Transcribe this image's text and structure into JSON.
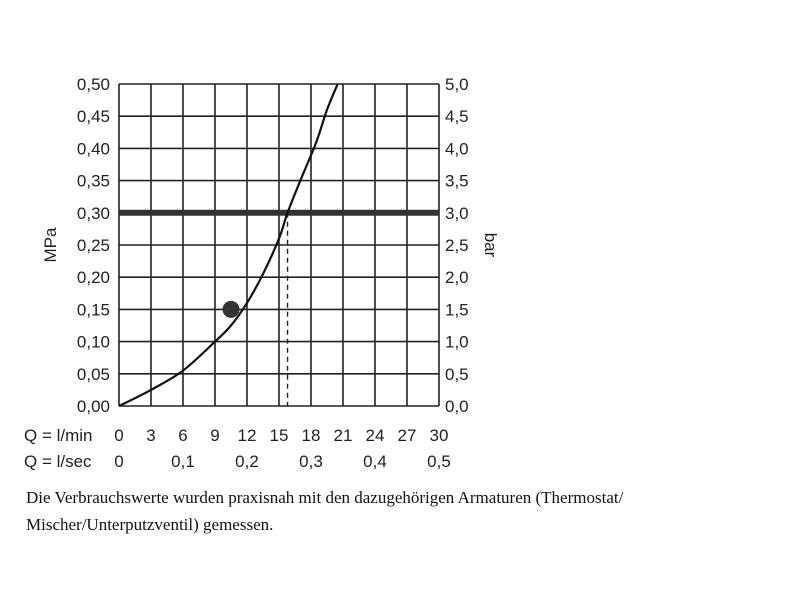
{
  "chart_data": {
    "type": "line",
    "y_left": {
      "label": "MPa",
      "ticks": [
        "0,00",
        "0,05",
        "0,10",
        "0,15",
        "0,20",
        "0,25",
        "0,30",
        "0,35",
        "0,40",
        "0,45",
        "0,50"
      ],
      "range": [
        0,
        0.5
      ]
    },
    "y_right": {
      "label": "bar",
      "ticks": [
        "0,0",
        "0,5",
        "1,0",
        "1,5",
        "2,0",
        "2,5",
        "3,0",
        "3,5",
        "4,0",
        "4,5",
        "5,0"
      ],
      "range": [
        0,
        5.0
      ]
    },
    "x_lmin": {
      "label": "Q = l/min",
      "ticks": [
        "0",
        "3",
        "6",
        "9",
        "12",
        "15",
        "18",
        "21",
        "24",
        "27",
        "30"
      ],
      "range": [
        0,
        30
      ]
    },
    "x_lsec": {
      "label": "Q = l/sec",
      "ticks": [
        "0",
        "0,1",
        "0,2",
        "0,3",
        "0,4",
        "0,5"
      ]
    },
    "grid": true,
    "series": [
      {
        "x": [
          0,
          3,
          6,
          9,
          10.5,
          12,
          13.5,
          15,
          15.8,
          17,
          18.5,
          19.5,
          20.5
        ],
        "y": [
          0.0,
          0.025,
          0.055,
          0.1,
          0.125,
          0.16,
          0.205,
          0.26,
          0.3,
          0.35,
          0.41,
          0.46,
          0.5
        ]
      }
    ],
    "reference_line": {
      "y": 0.3
    },
    "marker": {
      "x": 10.5,
      "y": 0.15
    },
    "dashed_drop": {
      "x": 15.8,
      "y": 0.3
    }
  },
  "caption": "Die Verbrauchswerte wurden praxisnah mit den dazugehörigen Armaturen (Thermostat/ Mischer/Unterputzventil) gemessen."
}
